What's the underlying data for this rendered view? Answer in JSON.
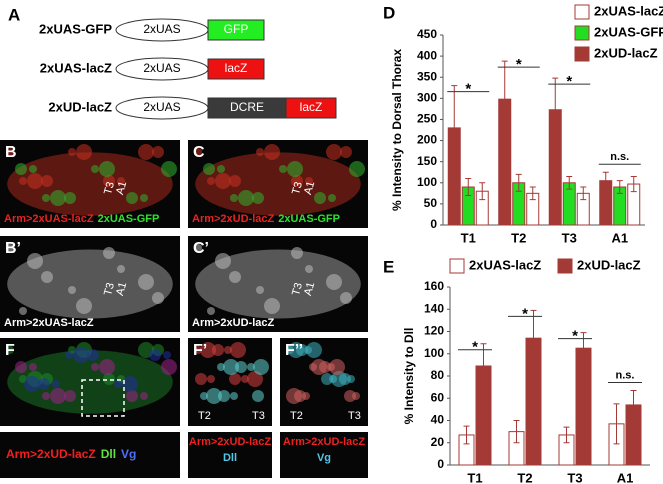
{
  "panel_a": {
    "letter": "A",
    "constructs": [
      {
        "name": "2xUAS-GFP",
        "parts": [
          "2xUAS",
          "GFP"
        ]
      },
      {
        "name": "2xUAS-lacZ",
        "parts": [
          "2xUAS",
          "lacZ"
        ]
      },
      {
        "name": "2xUD-lacZ",
        "parts": [
          "2xUAS",
          "DCRE",
          "lacZ"
        ]
      }
    ]
  },
  "images": [
    {
      "letter": "B",
      "caption": [
        "Arm>2xUAS-lacZ",
        "2xUAS-GFP"
      ],
      "marks": [
        "T3",
        "A1"
      ]
    },
    {
      "letter": "C",
      "caption": [
        "Arm>2xUD-lacZ",
        "2xUAS-GFP"
      ],
      "marks": [
        "T3",
        "A1"
      ]
    },
    {
      "letter": "B’",
      "caption": [
        "Arm>2xUAS-lacZ"
      ],
      "marks": [
        "T3",
        "A1"
      ]
    },
    {
      "letter": "C’",
      "caption": [
        "Arm>2xUD-lacZ"
      ],
      "marks": [
        "T3",
        "A1"
      ]
    },
    {
      "letter": "F",
      "caption": [
        "Arm>2xUD-lacZ",
        "Dll",
        "Vg"
      ],
      "marks": []
    },
    {
      "letter": "F’",
      "caption": [
        "Arm>2xUD-lacZ",
        "Dll"
      ],
      "marks": [
        "T2",
        "T3"
      ]
    },
    {
      "letter": "F’’",
      "caption": [
        "Arm>2xUD-lacZ",
        "Vg"
      ],
      "marks": [
        "T2",
        "T3"
      ]
    }
  ],
  "chart_data": [
    {
      "type": "bar",
      "letter": "D",
      "y_label": "% Intensity to Dorsal Thorax",
      "categories": [
        "T1",
        "T2",
        "T3",
        "A1"
      ],
      "series": [
        {
          "name": "2xUAS-lacZ",
          "color": "#ffffff",
          "values": [
            80,
            75,
            75,
            97
          ],
          "errors": [
            20,
            15,
            15,
            18
          ]
        },
        {
          "name": "2xUAS-GFP",
          "color": "#22dd22",
          "values": [
            90,
            100,
            100,
            90
          ],
          "errors": [
            20,
            20,
            15,
            15
          ]
        },
        {
          "name": "2xUD-lacZ",
          "color": "#a33a36",
          "values": [
            230,
            298,
            273,
            105
          ],
          "errors": [
            100,
            90,
            75,
            20
          ]
        }
      ],
      "annotations": [
        "*",
        "*",
        "*",
        "n.s."
      ],
      "ylim": [
        0,
        450
      ],
      "yticks": [
        0,
        50,
        100,
        150,
        200,
        250,
        300,
        350,
        400,
        450
      ]
    },
    {
      "type": "bar",
      "letter": "E",
      "y_label": "% Intensity to Dll",
      "categories": [
        "T1",
        "T2",
        "T3",
        "A1"
      ],
      "series": [
        {
          "name": "2xUAS-lacZ",
          "color": "#ffffff",
          "values": [
            27,
            30,
            27,
            37
          ],
          "errors": [
            8,
            10,
            7,
            18
          ]
        },
        {
          "name": "2xUD-lacZ",
          "color": "#a33a36",
          "values": [
            89,
            114,
            105,
            54
          ],
          "errors": [
            20,
            25,
            14,
            13
          ]
        }
      ],
      "annotations": [
        "*",
        "*",
        "*",
        "n.s."
      ],
      "ylim": [
        0,
        160
      ],
      "yticks": [
        0,
        20,
        40,
        60,
        80,
        100,
        120,
        140,
        160
      ]
    }
  ]
}
